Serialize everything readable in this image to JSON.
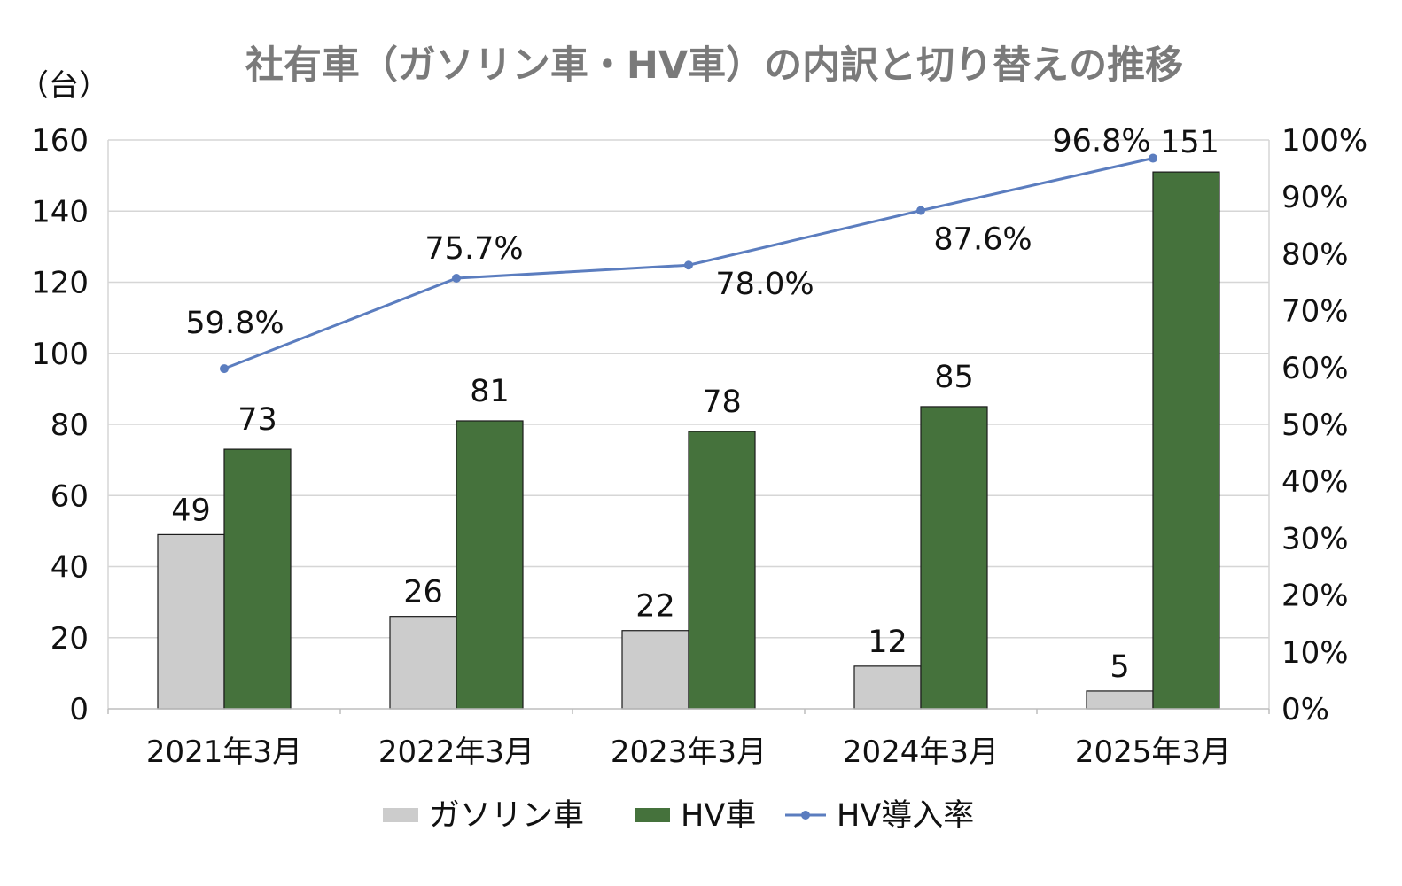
{
  "chart_data": {
    "type": "bar",
    "title": "社有車（ガソリン車・HV車）の内訳と切り替えの推移",
    "ylabel": "（台）",
    "categories": [
      "2021年3月",
      "2022年3月",
      "2023年3月",
      "2024年3月",
      "2025年3月"
    ],
    "y_ticks": [
      "0",
      "20",
      "40",
      "60",
      "80",
      "100",
      "120",
      "140",
      "160"
    ],
    "y2_ticks": [
      "0%",
      "10%",
      "20%",
      "30%",
      "40%",
      "50%",
      "60%",
      "70%",
      "80%",
      "90%",
      "100%"
    ],
    "ylim": [
      0,
      160
    ],
    "y2lim": [
      0,
      100
    ],
    "grid": true,
    "legend_position": "bottom",
    "series": [
      {
        "name": "ガソリン車",
        "type": "bar",
        "axis": "left",
        "color": "#cccccc",
        "values": [
          49,
          26,
          22,
          12,
          5
        ],
        "labels": [
          "49",
          "26",
          "22",
          "12",
          "5"
        ]
      },
      {
        "name": "HV車",
        "type": "bar",
        "axis": "left",
        "color": "#45723c",
        "values": [
          73,
          81,
          78,
          85,
          151
        ],
        "labels": [
          "73",
          "81",
          "78",
          "85",
          "151"
        ]
      },
      {
        "name": "HV導入率",
        "type": "line",
        "axis": "right",
        "color": "#5b7dbf",
        "values": [
          59.8,
          75.7,
          78.0,
          87.6,
          96.8
        ],
        "labels": [
          "59.8%",
          "75.7%",
          "78.0%",
          "87.6%",
          "96.8%"
        ]
      }
    ]
  }
}
